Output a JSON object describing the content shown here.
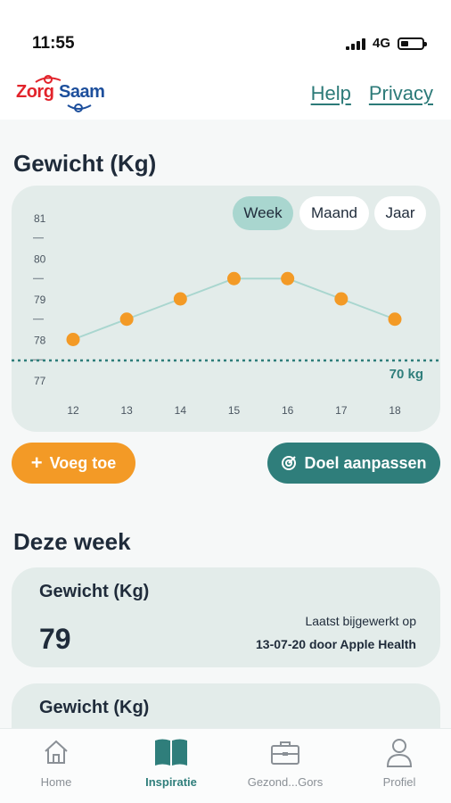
{
  "status": {
    "time": "11:55",
    "network": "4G"
  },
  "header": {
    "logo_left": "Zorg",
    "logo_right": "Saam",
    "help": "Help",
    "privacy": "Privacy"
  },
  "weight_section": {
    "title": "Gewicht (Kg)",
    "periods": [
      "Week",
      "Maand",
      "Jaar"
    ],
    "active_period": "Week"
  },
  "chart_data": {
    "type": "line",
    "x": [
      12,
      13,
      14,
      15,
      16,
      17,
      18
    ],
    "series": [
      {
        "values": [
          78.0,
          78.5,
          79.0,
          79.5,
          79.5,
          79.0,
          78.5
        ]
      }
    ],
    "y_tick_labels": [
      "77",
      "78",
      "79",
      "80",
      "81"
    ],
    "x_tick_labels": [
      "12",
      "13",
      "14",
      "15",
      "16",
      "17",
      "18"
    ],
    "ylim": [
      77,
      81
    ],
    "goal_line": {
      "value_label": "70 kg"
    },
    "colors": {
      "line": "#a9d6cf",
      "points": "#f39a26",
      "goal": "#2f7e7b"
    }
  },
  "actions": {
    "add_label": "Voeg toe",
    "goal_label": "Doel aanpassen"
  },
  "week_section": {
    "title": "Deze week",
    "cards": [
      {
        "title": "Gewicht (Kg)",
        "value": "79",
        "updated_line1": "Laatst bijgewerkt op",
        "updated_line2": "13-07-20 door Apple Health"
      },
      {
        "title": "Gewicht (Kg)"
      }
    ]
  },
  "tabbar": {
    "items": [
      {
        "label": "Home",
        "icon": "home-icon"
      },
      {
        "label": "Inspiratie",
        "icon": "book-icon"
      },
      {
        "label": "Gezond...Gors",
        "icon": "briefcase-icon"
      },
      {
        "label": "Profiel",
        "icon": "user-icon"
      }
    ],
    "active": 1
  }
}
